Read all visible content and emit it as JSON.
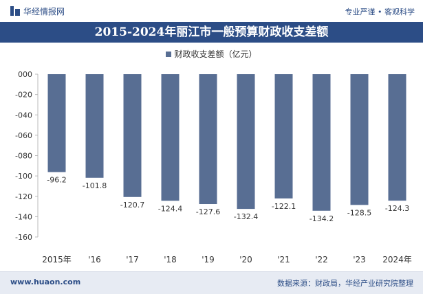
{
  "header": {
    "brand": "华经情报网",
    "tagline": "专业严谨 • 客观科学"
  },
  "footer": {
    "website": "www.huaon.com",
    "source": "数据来源：财政局，华经产业研究院整理"
  },
  "colors": {
    "bar": "#586e93",
    "title_bg": "#2c4d86",
    "footer_bg": "#e7ebf3"
  },
  "chart_data": {
    "type": "bar",
    "title": "2015-2024年丽江市一般预算财政收支差额",
    "legend": [
      "财政收支差额（亿元）"
    ],
    "legend_position": "top-center",
    "categories": [
      "2015年",
      "'16",
      "'17",
      "'18",
      "'19",
      "'20",
      "'21",
      "'22",
      "'23",
      "2024年"
    ],
    "series": [
      {
        "name": "财政收支差额（亿元）",
        "values": [
          -96.2,
          -101.8,
          -120.7,
          -124.4,
          -127.6,
          -132.4,
          -122.1,
          -134.2,
          -128.5,
          -124.3
        ]
      }
    ],
    "data_labels": [
      "-96.2",
      "-101.8",
      "-120.7",
      "-124.4",
      "-127.6",
      "-132.4",
      "-122.1",
      "-134.2",
      "-128.5",
      "-124.3"
    ],
    "y_tick_labels": [
      "000",
      "-020",
      "-040",
      "-060",
      "-080",
      "-100",
      "-120",
      "-140",
      "-160"
    ],
    "ylim": [
      -160,
      0
    ],
    "grid": false
  }
}
